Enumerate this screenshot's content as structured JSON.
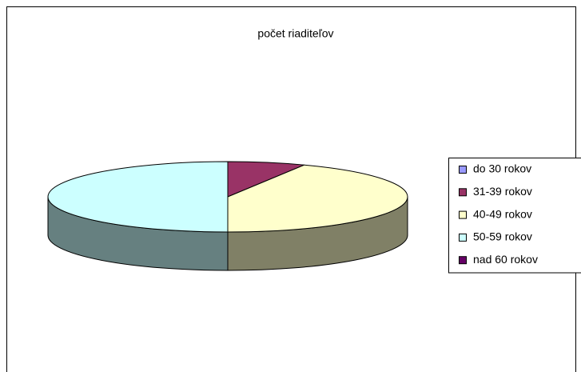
{
  "chart_data": {
    "type": "pie",
    "title": "počet riaditeľov",
    "categories": [
      "do 30 rokov",
      "31-39 rokov",
      "40-49 rokov",
      "50-59 rokov",
      "nad 60 rokov"
    ],
    "values": [
      0,
      7,
      43,
      50,
      0
    ],
    "colors": [
      "#9999ff",
      "#993366",
      "#ffffcc",
      "#ccffff",
      "#660066"
    ],
    "legend": "right"
  }
}
